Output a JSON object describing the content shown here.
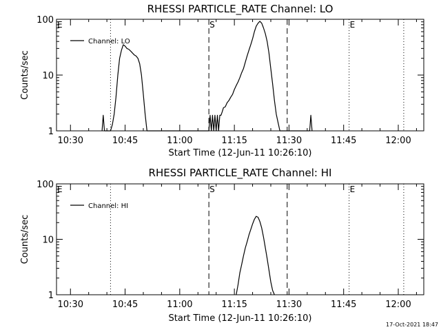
{
  "chart_data": [
    {
      "type": "line",
      "title": "RHESSI PARTICLE_RATE Channel: LO",
      "xlabel": "Start Time (12-Jun-11 10:26:10)",
      "ylabel": "Counts/sec",
      "yscale": "log",
      "ylim": [
        1,
        100
      ],
      "xlim": [
        "10:26:10",
        "12:07:00"
      ],
      "x_ticks": [
        "10:30",
        "10:45",
        "11:00",
        "11:15",
        "11:30",
        "11:45",
        "12:00"
      ],
      "y_ticks": [
        "1",
        "10",
        "100"
      ],
      "legend": {
        "label": "Channel: LO",
        "position": "top-left"
      },
      "markers": [
        {
          "label": "E",
          "time": "10:26:10",
          "style": "none"
        },
        {
          "label": "",
          "time": "10:41:00",
          "style": "dotted"
        },
        {
          "label": "S",
          "time": "11:08:00",
          "style": "dashed"
        },
        {
          "label": "",
          "time": "11:29:30",
          "style": "dashed"
        },
        {
          "label": "E",
          "time": "11:46:30",
          "style": "dotted"
        },
        {
          "label": "",
          "time": "12:01:30",
          "style": "dotted"
        }
      ],
      "series": [
        {
          "name": "Channel: LO",
          "x": [
            "10:38:40",
            "10:39:00",
            "10:39:20",
            "10:41:00",
            "10:41:30",
            "10:42:00",
            "10:42:30",
            "10:43:00",
            "10:43:30",
            "10:44:00",
            "10:44:30",
            "10:45:00",
            "10:45:30",
            "10:46:00",
            "10:46:30",
            "10:47:00",
            "10:47:30",
            "10:48:00",
            "10:48:30",
            "10:49:00",
            "10:49:30",
            "10:50:00",
            "10:50:30",
            "10:51:00",
            "11:08:00",
            "11:08:20",
            "11:08:40",
            "11:09:00",
            "11:09:20",
            "11:09:40",
            "11:10:00",
            "11:10:20",
            "11:10:40",
            "11:11:00",
            "11:11:20",
            "11:11:40",
            "11:12:00",
            "11:12:30",
            "11:13:00",
            "11:13:30",
            "11:14:00",
            "11:14:30",
            "11:15:00",
            "11:15:30",
            "11:16:00",
            "11:16:30",
            "11:17:00",
            "11:17:30",
            "11:18:00",
            "11:18:30",
            "11:19:00",
            "11:19:30",
            "11:20:00",
            "11:20:30",
            "11:21:00",
            "11:21:30",
            "11:22:00",
            "11:22:30",
            "11:23:00",
            "11:23:30",
            "11:24:00",
            "11:24:30",
            "11:25:00",
            "11:25:30",
            "11:26:00",
            "11:26:30",
            "11:27:00",
            "11:27:30",
            "11:35:40",
            "11:36:00",
            "11:36:20"
          ],
          "y": [
            1,
            1.9,
            1,
            1,
            1.3,
            2,
            4,
            10,
            20,
            28,
            35,
            33,
            30,
            29,
            27,
            25,
            23,
            22,
            20,
            16,
            10,
            4.5,
            2,
            1,
            1,
            1.9,
            1,
            1.9,
            1,
            1.9,
            1,
            1.9,
            1,
            1.9,
            1.9,
            2.2,
            2.6,
            2.7,
            3.2,
            3.5,
            4,
            4.5,
            5.5,
            6.5,
            7.5,
            9,
            11,
            13,
            17,
            22,
            28,
            35,
            45,
            60,
            75,
            85,
            92,
            85,
            70,
            55,
            40,
            25,
            13,
            7,
            3.5,
            2,
            1.4,
            1,
            1,
            1.9,
            1
          ]
        }
      ]
    },
    {
      "type": "line",
      "title": "RHESSI PARTICLE_RATE Channel: HI",
      "xlabel": "Start Time (12-Jun-11 10:26:10)",
      "ylabel": "Counts/sec",
      "yscale": "log",
      "ylim": [
        1,
        100
      ],
      "xlim": [
        "10:26:10",
        "12:07:00"
      ],
      "x_ticks": [
        "10:30",
        "10:45",
        "11:00",
        "11:15",
        "11:30",
        "11:45",
        "12:00"
      ],
      "y_ticks": [
        "1",
        "10",
        "100"
      ],
      "legend": {
        "label": "Channel: HI",
        "position": "top-left"
      },
      "markers": [
        {
          "label": "E",
          "time": "10:26:10",
          "style": "none"
        },
        {
          "label": "",
          "time": "10:41:00",
          "style": "dotted"
        },
        {
          "label": "S",
          "time": "11:08:00",
          "style": "dashed"
        },
        {
          "label": "",
          "time": "11:29:30",
          "style": "dashed"
        },
        {
          "label": "E",
          "time": "11:46:30",
          "style": "dotted"
        },
        {
          "label": "",
          "time": "12:01:30",
          "style": "dotted"
        }
      ],
      "series": [
        {
          "name": "Channel: HI",
          "x": [
            "11:15:30",
            "11:16:00",
            "11:16:30",
            "11:17:00",
            "11:17:30",
            "11:18:00",
            "11:18:30",
            "11:19:00",
            "11:19:30",
            "11:20:00",
            "11:20:30",
            "11:21:00",
            "11:21:30",
            "11:22:00",
            "11:22:30",
            "11:23:00",
            "11:23:30",
            "11:24:00",
            "11:24:30",
            "11:25:00",
            "11:25:30",
            "11:26:00"
          ],
          "y": [
            1,
            1.5,
            2.5,
            3.5,
            5,
            7,
            9,
            12,
            15,
            19,
            23,
            26,
            25,
            21,
            16,
            11,
            7,
            4.5,
            2.8,
            1.7,
            1.2,
            1
          ]
        }
      ]
    }
  ],
  "timestamp": "17-Oct-2021 18:47"
}
